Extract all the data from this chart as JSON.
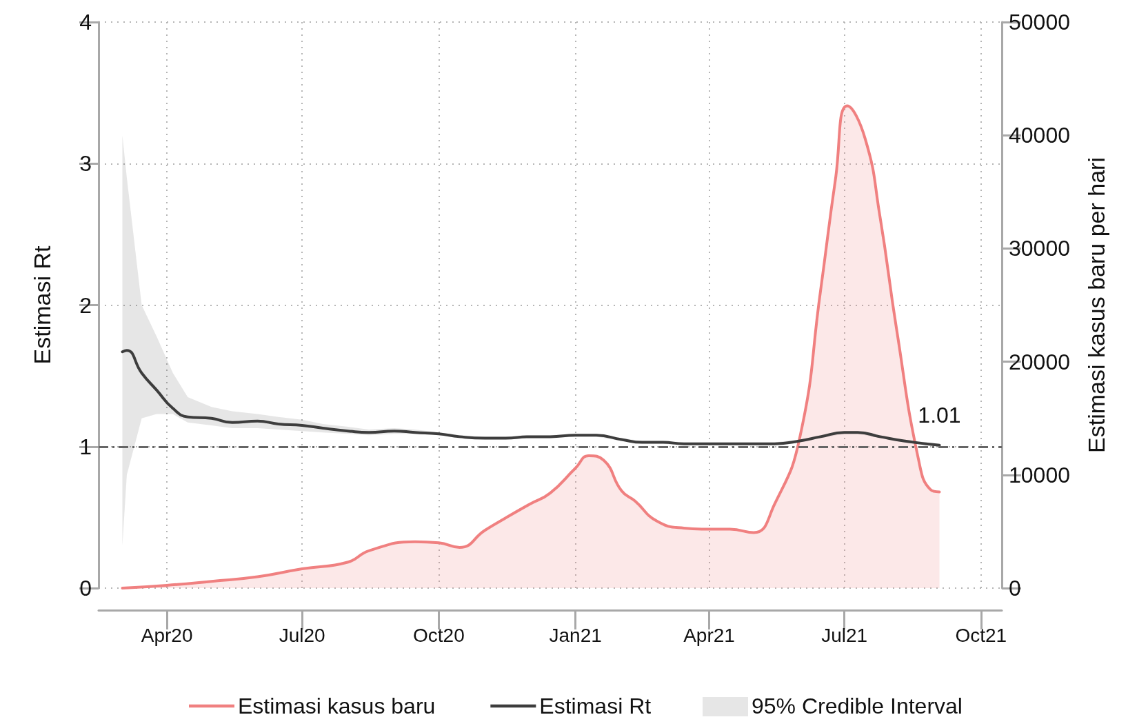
{
  "chart_data": {
    "type": "line",
    "ylabel": "Estimasi Rt",
    "y2label": "Estimasi kasus baru per hari",
    "xlim": [
      "2020-02-15",
      "2021-10-15"
    ],
    "xticks": [
      {
        "value": "2020-04-01",
        "label": "Apr20"
      },
      {
        "value": "2020-07-01",
        "label": "Jul20"
      },
      {
        "value": "2020-10-01",
        "label": "Oct20"
      },
      {
        "value": "2021-01-01",
        "label": "Jan21"
      },
      {
        "value": "2021-04-01",
        "label": "Apr21"
      },
      {
        "value": "2021-07-01",
        "label": "Jul21"
      },
      {
        "value": "2021-10-01",
        "label": "Oct21"
      }
    ],
    "ylim": [
      0,
      4
    ],
    "yticks": [
      0,
      1,
      2,
      3,
      4
    ],
    "y2lim": [
      0,
      50000
    ],
    "y2ticks": [
      0,
      10000,
      20000,
      30000,
      40000,
      50000
    ],
    "grid": true,
    "legend": "bottom",
    "line_style": "solid",
    "marker": "none",
    "series": [
      {
        "name": "Estimasi kasus baru",
        "type": "area",
        "axis": "y2",
        "color": "#f08080",
        "x": [
          "2020-03-02",
          "2020-04-01",
          "2020-05-01",
          "2020-06-01",
          "2020-07-01",
          "2020-08-01",
          "2020-08-15",
          "2020-09-15",
          "2020-10-01",
          "2020-10-15",
          "2020-11-01",
          "2020-11-15",
          "2020-12-01",
          "2020-12-15",
          "2021-01-01",
          "2021-01-10",
          "2021-01-20",
          "2021-02-01",
          "2021-02-10",
          "2021-02-25",
          "2021-03-15",
          "2021-04-01",
          "2021-04-15",
          "2021-05-01",
          "2021-05-15",
          "2021-06-01",
          "2021-06-15",
          "2021-06-25",
          "2021-07-03",
          "2021-07-15",
          "2021-07-25",
          "2021-08-05",
          "2021-08-20",
          "2021-08-28",
          "2021-09-03"
        ],
        "values": [
          0,
          250,
          600,
          1000,
          1700,
          2300,
          3300,
          4100,
          4000,
          3600,
          5100,
          6200,
          7400,
          8400,
          10600,
          11700,
          11300,
          8600,
          7700,
          5900,
          5300,
          5200,
          5200,
          4900,
          7400,
          13300,
          26300,
          36100,
          42600,
          39700,
          32800,
          23000,
          11300,
          8700,
          8500
        ]
      },
      {
        "name": "Estimasi Rt",
        "type": "line",
        "color": "#3d3d3d",
        "x": [
          "2020-03-02",
          "2020-03-05",
          "2020-03-15",
          "2020-03-25",
          "2020-04-05",
          "2020-04-15",
          "2020-05-01",
          "2020-05-15",
          "2020-06-01",
          "2020-06-15",
          "2020-07-01",
          "2020-07-15",
          "2020-08-01",
          "2020-08-15",
          "2020-09-01",
          "2020-09-15",
          "2020-10-01",
          "2020-10-15",
          "2020-11-01",
          "2020-11-15",
          "2020-12-01",
          "2020-12-15",
          "2021-01-01",
          "2021-01-15",
          "2021-02-01",
          "2021-02-15",
          "2021-03-01",
          "2021-03-15",
          "2021-04-01",
          "2021-04-15",
          "2021-05-01",
          "2021-05-15",
          "2021-06-01",
          "2021-06-15",
          "2021-07-01",
          "2021-07-10",
          "2021-07-25",
          "2021-08-10",
          "2021-08-25",
          "2021-09-03"
        ],
        "values": [
          1.67,
          1.68,
          1.52,
          1.4,
          1.27,
          1.21,
          1.2,
          1.17,
          1.18,
          1.16,
          1.15,
          1.13,
          1.11,
          1.1,
          1.11,
          1.1,
          1.09,
          1.07,
          1.06,
          1.06,
          1.07,
          1.07,
          1.08,
          1.08,
          1.05,
          1.03,
          1.03,
          1.02,
          1.02,
          1.02,
          1.02,
          1.02,
          1.04,
          1.07,
          1.1,
          1.1,
          1.07,
          1.04,
          1.02,
          1.01
        ],
        "lower": [
          0.3,
          0.8,
          1.2,
          1.23,
          1.23,
          1.17,
          1.15,
          1.13,
          1.13,
          1.12,
          1.11,
          1.1,
          1.09,
          1.08,
          1.09,
          1.09,
          1.08,
          1.06,
          1.05,
          1.05,
          1.06,
          1.06,
          1.07,
          1.07,
          1.04,
          1.02,
          1.02,
          1.01,
          1.01,
          1.01,
          1.01,
          1.01,
          1.03,
          1.06,
          1.09,
          1.09,
          1.06,
          1.03,
          1.01,
          1.0
        ],
        "upper": [
          3.2,
          2.9,
          2.0,
          1.78,
          1.52,
          1.35,
          1.28,
          1.25,
          1.23,
          1.21,
          1.19,
          1.16,
          1.14,
          1.12,
          1.13,
          1.12,
          1.1,
          1.08,
          1.07,
          1.07,
          1.08,
          1.08,
          1.09,
          1.09,
          1.06,
          1.04,
          1.04,
          1.03,
          1.03,
          1.03,
          1.03,
          1.03,
          1.05,
          1.08,
          1.11,
          1.11,
          1.08,
          1.05,
          1.03,
          1.02
        ]
      }
    ],
    "ref_lines": [
      {
        "axis": "y",
        "value": 1,
        "color": "#666666",
        "line_style": "dashed"
      }
    ],
    "annotations": [
      {
        "text": "1.01",
        "x": "2021-09-03",
        "y": 1.01
      },
      "95% Credible Interval"
    ]
  }
}
